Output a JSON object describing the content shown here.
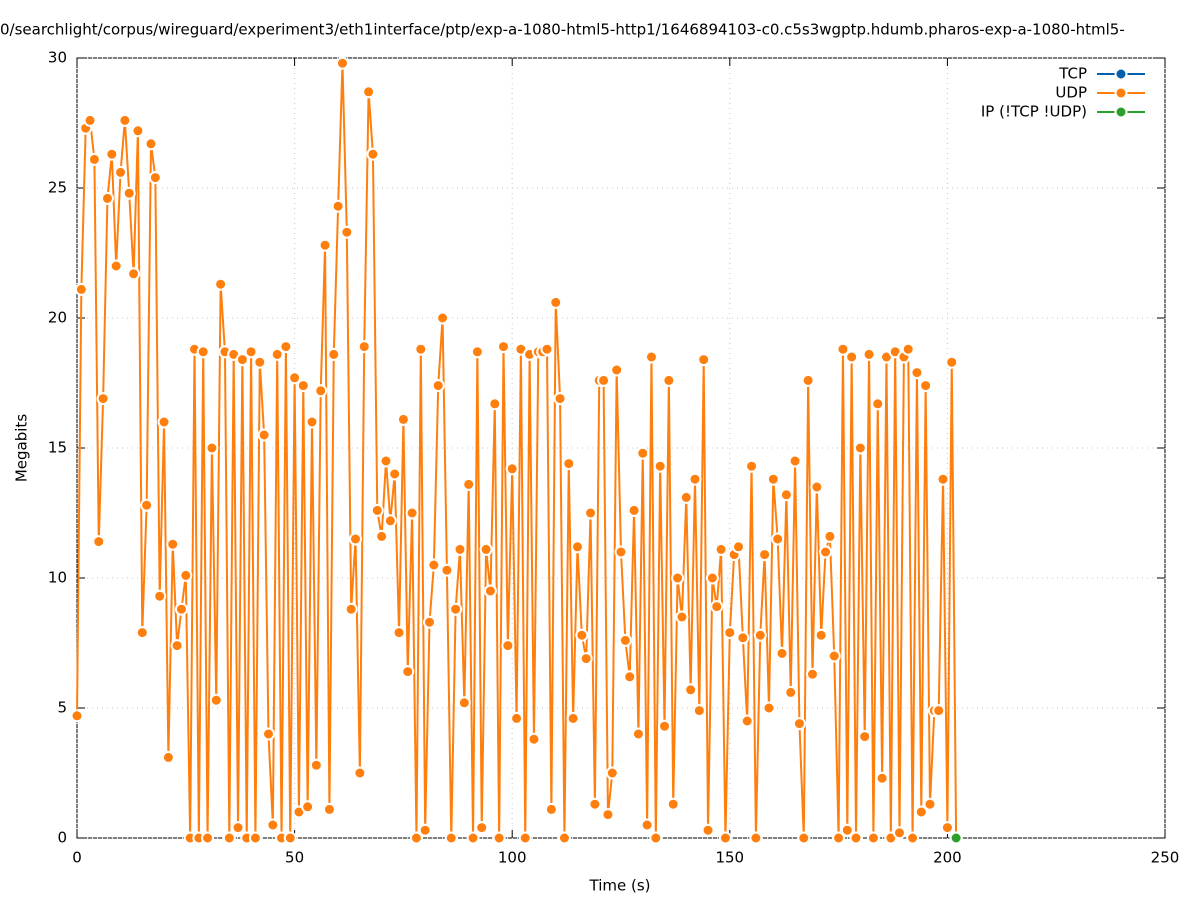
{
  "chart_data": {
    "type": "line",
    "title": "0/searchlight/corpus/wireguard/experiment3/eth1interface/ptp/exp-a-1080-html5-http1/1646894103-c0.c5s3wgptp.hdumb.pharos-exp-a-1080-html5-",
    "xlabel": "Time (s)",
    "ylabel": "Megabits",
    "xlim": [
      0,
      250
    ],
    "xticks": [
      0,
      50,
      100,
      150,
      200,
      250
    ],
    "ylim": [
      0,
      30
    ],
    "yticks": [
      0,
      5,
      10,
      15,
      20,
      25,
      30
    ],
    "grid": true,
    "legend": "top-right",
    "series": [
      {
        "name": "TCP",
        "color": "#0060ad",
        "x": [],
        "values": []
      },
      {
        "name": "UDP",
        "color": "#ff7f0e",
        "x": [
          0,
          1,
          2,
          3,
          4,
          5,
          6,
          7,
          8,
          9,
          10,
          11,
          12,
          13,
          14,
          15,
          16,
          17,
          18,
          19,
          20,
          21,
          22,
          23,
          24,
          25,
          26,
          27,
          28,
          29,
          30,
          31,
          32,
          33,
          34,
          35,
          36,
          37,
          38,
          39,
          40,
          41,
          42,
          43,
          44,
          45,
          46,
          47,
          48,
          49,
          50,
          51,
          52,
          53,
          54,
          55,
          56,
          57,
          58,
          59,
          60,
          61,
          62,
          63,
          64,
          65,
          66,
          67,
          68,
          69,
          70,
          71,
          72,
          73,
          74,
          75,
          76,
          77,
          78,
          79,
          80,
          81,
          82,
          83,
          84,
          85,
          86,
          87,
          88,
          89,
          90,
          91,
          92,
          93,
          94,
          95,
          96,
          97,
          98,
          99,
          100,
          101,
          102,
          103,
          104,
          105,
          106,
          107,
          108,
          109,
          110,
          111,
          112,
          113,
          114,
          115,
          116,
          117,
          118,
          119,
          120,
          121,
          122,
          123,
          124,
          125,
          126,
          127,
          128,
          129,
          130,
          131,
          132,
          133,
          134,
          135,
          136,
          137,
          138,
          139,
          140,
          141,
          142,
          143,
          144,
          145,
          146,
          147,
          148,
          149,
          150,
          151,
          152,
          153,
          154,
          155,
          156,
          157,
          158,
          159,
          160,
          161,
          162,
          163,
          164,
          165,
          166,
          167,
          168,
          169,
          170,
          171,
          172,
          173,
          174,
          175,
          176,
          177,
          178,
          179,
          180,
          181,
          182,
          183,
          184,
          185,
          186,
          187,
          188,
          189,
          190,
          191,
          192,
          193,
          194,
          195,
          196,
          197,
          198,
          199,
          200,
          201,
          202
        ],
        "values": [
          4.7,
          21.1,
          27.3,
          27.6,
          26.1,
          11.4,
          16.9,
          24.6,
          26.3,
          22.0,
          25.6,
          27.6,
          24.8,
          21.7,
          27.2,
          7.9,
          12.8,
          26.7,
          25.4,
          9.3,
          16.0,
          3.1,
          11.3,
          7.4,
          8.8,
          10.1,
          0,
          18.8,
          0,
          18.7,
          0,
          15.0,
          5.3,
          21.3,
          18.7,
          0,
          18.6,
          0.4,
          18.4,
          0,
          18.7,
          0,
          18.3,
          15.5,
          4.0,
          0.5,
          18.6,
          0,
          18.9,
          0,
          17.7,
          1.0,
          17.4,
          1.2,
          16.0,
          2.8,
          17.2,
          22.8,
          1.1,
          18.6,
          24.3,
          29.8,
          23.3,
          8.8,
          11.5,
          2.5,
          18.9,
          28.7,
          26.3,
          12.6,
          11.6,
          14.5,
          12.2,
          14.0,
          7.9,
          16.1,
          6.4,
          12.5,
          0,
          18.8,
          0.3,
          8.3,
          10.5,
          17.4,
          20.0,
          10.3,
          0,
          8.8,
          11.1,
          5.2,
          13.6,
          0,
          18.7,
          0.4,
          11.1,
          9.5,
          16.7,
          0,
          18.9,
          7.4,
          14.2,
          4.6,
          18.8,
          0,
          18.6,
          3.8,
          18.7,
          18.7,
          18.8,
          1.1,
          20.6,
          16.9,
          0,
          14.4,
          4.6,
          11.2,
          7.8,
          6.9,
          12.5,
          1.3,
          17.6,
          17.6,
          0.9,
          2.5,
          18.0,
          11.0,
          7.6,
          6.2,
          12.6,
          4.0,
          14.8,
          0.5,
          18.5,
          0,
          14.3,
          4.3,
          17.6,
          1.3,
          10.0,
          8.5,
          13.1,
          5.7,
          13.8,
          4.9,
          18.4,
          0.3,
          10.0,
          8.9,
          11.1,
          0,
          7.9,
          10.9,
          11.2,
          7.7,
          4.5,
          14.3,
          0,
          7.8,
          10.9,
          5.0,
          13.8,
          11.5,
          7.1,
          13.2,
          5.6,
          14.5,
          4.4,
          0,
          17.6,
          6.3,
          13.5,
          7.8,
          11.0,
          11.6,
          7.0,
          0,
          18.8,
          0.3,
          18.5,
          0,
          15.0,
          3.9,
          18.6,
          0,
          16.7,
          2.3,
          18.5,
          0,
          18.7,
          0.2,
          18.5,
          18.8,
          0,
          17.9,
          1.0,
          17.4,
          1.3,
          4.9,
          4.9,
          13.8,
          0.4,
          18.3,
          0
        ]
      },
      {
        "name": "IP (!TCP  !UDP)",
        "color": "#2ca02c",
        "x": [
          202
        ],
        "values": [
          0
        ]
      }
    ]
  }
}
